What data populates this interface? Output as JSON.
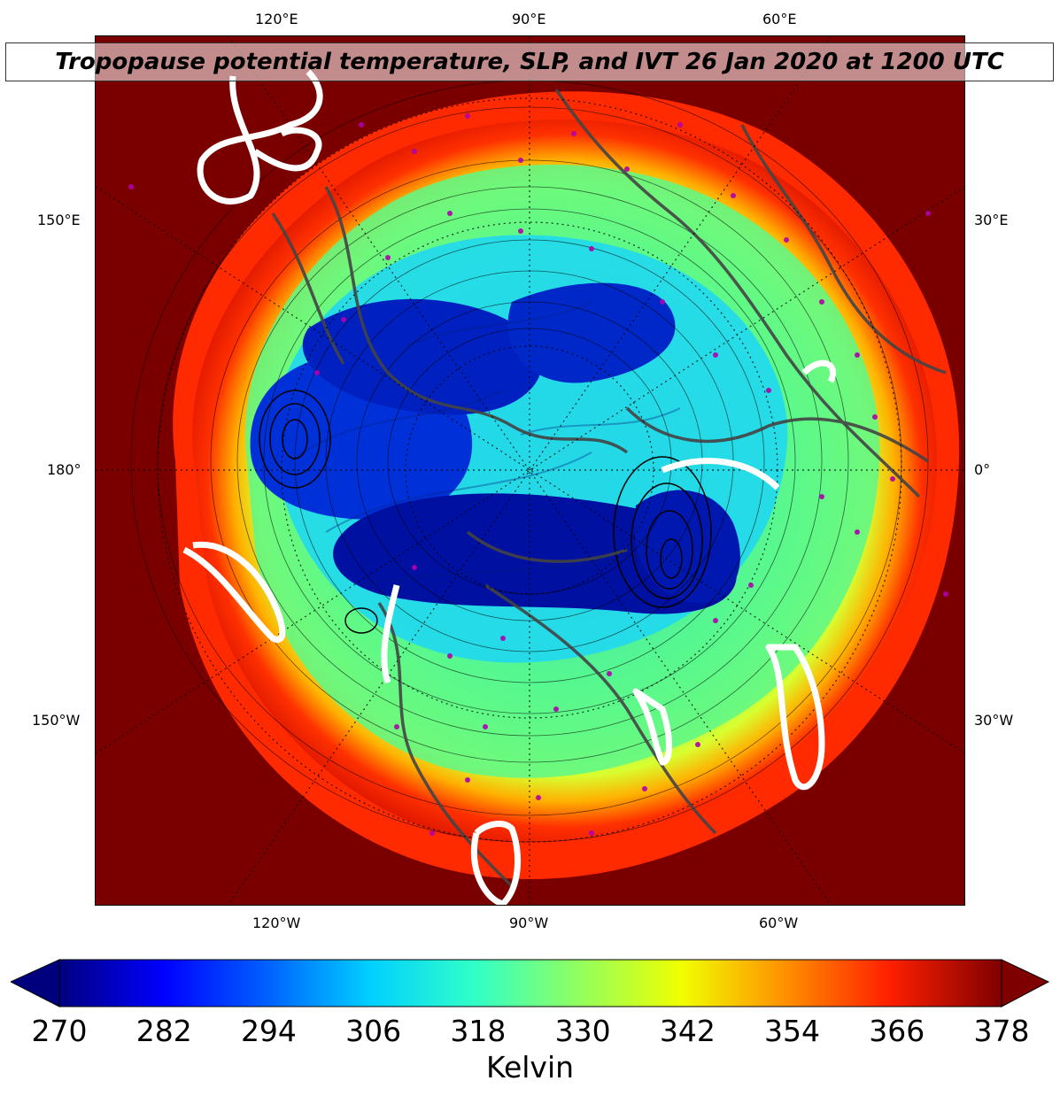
{
  "title": "Tropopause potential temperature, SLP, and IVT 26 Jan 2020 at 1200 UTC",
  "map": {
    "projection": "north-polar-stereographic",
    "top_labels": [
      "120°E",
      "90°E",
      "60°E"
    ],
    "bottom_labels": [
      "120°W",
      "90°W",
      "60°W"
    ],
    "left_labels": [
      "150°E",
      "180°",
      "150°W"
    ],
    "right_labels": [
      "30°E",
      "0°",
      "30°W"
    ],
    "colors": {
      "coldest": "#00008b",
      "cold": "#0050ff",
      "cool": "#00d8ff",
      "mild": "#40ff9a",
      "warm": "#e8ff20",
      "hot": "#ff3000",
      "hottest": "#7a0000",
      "coastline": "#444444",
      "ivt_contour": "#ffffff",
      "slp_contour": "#000000",
      "station_marker": "#b000b0"
    }
  },
  "colorbar": {
    "ticks": [
      "270",
      "282",
      "294",
      "306",
      "318",
      "330",
      "342",
      "354",
      "366",
      "378"
    ],
    "label": "Kelvin",
    "min": 270,
    "max": 378
  }
}
